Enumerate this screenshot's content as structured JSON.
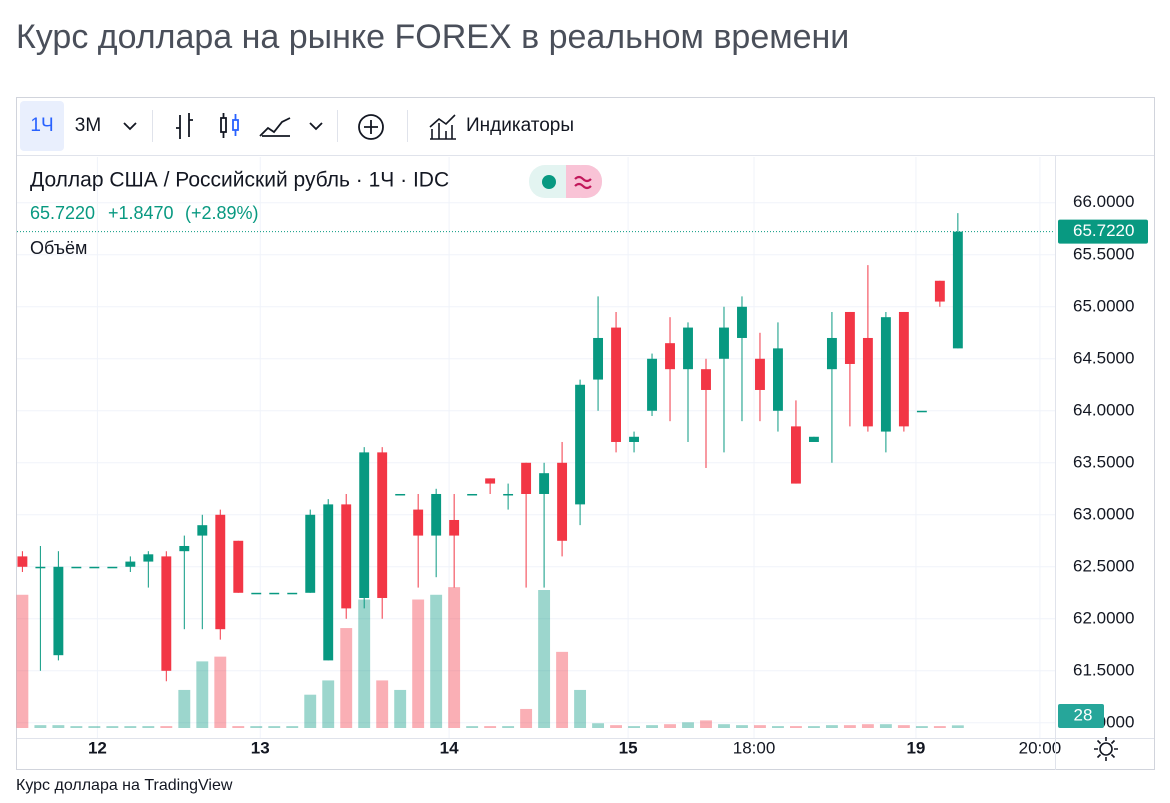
{
  "chart_data": {
    "type": "candlestick",
    "title": "Курс доллара на рынке FOREX в реальном времени",
    "toolbar": {
      "interval": "1Ч",
      "range": "3М",
      "indicators": "Индикаторы"
    },
    "legend_title": "Доллар США / Российский рубль · 1Ч · IDC",
    "change": "+1.8470",
    "change_pct": "(+2.89%)",
    "volume_label": "Объём",
    "source": "Курс доллара на TradingView",
    "up_color": "#089981",
    "down_color": "#f23645",
    "last_price": {
      "value": 65.722,
      "label": "65.7220"
    },
    "open": [
      62.6,
      62.5,
      61.65,
      62.5,
      62.5,
      62.5,
      62.5,
      62.55,
      62.6,
      62.65,
      62.8,
      63.0,
      62.75,
      62.25,
      62.25,
      62.25,
      62.25,
      61.6,
      63.1,
      62.2,
      63.6,
      63.2,
      63.05,
      62.8,
      62.95,
      63.2,
      63.35,
      63.2,
      63.5,
      63.2,
      63.5,
      63.1,
      64.3,
      64.8,
      63.7,
      64.0,
      64.65,
      64.4,
      64.4,
      64.5,
      64.7,
      64.5,
      64.0,
      63.85,
      63.7,
      64.4,
      64.95,
      64.7,
      63.8,
      64.95,
      64.0,
      65.25,
      64.6
    ],
    "high": [
      62.65,
      62.7,
      62.65,
      62.5,
      62.5,
      62.5,
      62.6,
      62.65,
      62.65,
      62.8,
      63.0,
      63.05,
      62.75,
      62.25,
      62.25,
      62.25,
      63.05,
      63.15,
      63.2,
      63.65,
      63.65,
      63.2,
      63.2,
      63.25,
      63.2,
      63.2,
      63.35,
      63.3,
      63.5,
      63.5,
      63.7,
      64.3,
      65.1,
      64.95,
      63.8,
      64.55,
      64.9,
      64.85,
      64.5,
      65.0,
      65.1,
      64.75,
      64.85,
      64.1,
      63.75,
      64.95,
      64.95,
      65.4,
      64.95,
      64.95,
      64.0,
      65.25,
      65.9
    ],
    "low": [
      62.45,
      61.5,
      61.6,
      62.5,
      62.5,
      62.5,
      62.45,
      62.3,
      61.4,
      61.9,
      61.9,
      61.8,
      62.25,
      62.25,
      62.25,
      62.25,
      62.25,
      61.6,
      62.0,
      62.1,
      62.0,
      63.2,
      62.3,
      62.4,
      62.3,
      63.2,
      63.2,
      63.05,
      62.3,
      62.3,
      62.6,
      62.9,
      64.0,
      63.6,
      63.6,
      63.95,
      63.9,
      63.7,
      63.45,
      63.6,
      63.9,
      63.9,
      63.8,
      63.3,
      63.7,
      63.5,
      63.85,
      63.8,
      63.6,
      63.8,
      64.0,
      65.0,
      64.6
    ],
    "close": [
      62.5,
      62.5,
      62.5,
      62.5,
      62.5,
      62.5,
      62.55,
      62.62,
      61.5,
      62.7,
      62.9,
      61.9,
      62.25,
      62.25,
      62.25,
      62.25,
      63.0,
      63.1,
      62.1,
      63.6,
      62.2,
      63.2,
      62.8,
      63.2,
      62.8,
      63.2,
      63.3,
      63.2,
      63.2,
      63.4,
      62.75,
      64.25,
      64.7,
      63.7,
      63.75,
      64.5,
      64.4,
      64.8,
      64.2,
      64.8,
      65.0,
      64.2,
      64.6,
      63.3,
      63.75,
      64.7,
      64.45,
      63.85,
      64.9,
      63.85,
      64.0,
      65.05,
      65.722
    ],
    "volume": [
      1400,
      30,
      30,
      20,
      20,
      20,
      20,
      20,
      20,
      400,
      700,
      750,
      20,
      20,
      20,
      20,
      350,
      500,
      1050,
      1350,
      500,
      400,
      1350,
      1400,
      1480,
      20,
      20,
      20,
      200,
      1450,
      800,
      400,
      50,
      30,
      20,
      30,
      40,
      60,
      80,
      40,
      30,
      30,
      20,
      20,
      20,
      30,
      30,
      40,
      40,
      30,
      20,
      20,
      28
    ],
    "xlim": [
      -0.3,
      57.4
    ],
    "xticks": [
      {
        "value": 4.17,
        "label": "12"
      },
      {
        "value": 13.22,
        "label": "13"
      },
      {
        "value": 23.72,
        "label": "14"
      },
      {
        "value": 33.67,
        "label": "15"
      },
      {
        "value": 40.67,
        "label": "18:00"
      },
      {
        "value": 49.67,
        "label": "19"
      },
      {
        "value": 56.56,
        "label": "20:00"
      }
    ],
    "ylim": [
      60.95,
      66.44
    ],
    "yticks": [
      {
        "value": 61,
        "label": "61.0000"
      },
      {
        "value": 61.5,
        "label": "61.5000"
      },
      {
        "value": 62,
        "label": "62.0000"
      },
      {
        "value": 62.5,
        "label": "62.5000"
      },
      {
        "value": 63,
        "label": "63.0000"
      },
      {
        "value": 63.5,
        "label": "63.5000"
      },
      {
        "value": 64,
        "label": "64.0000"
      },
      {
        "value": 64.5,
        "label": "64.5000"
      },
      {
        "value": 65,
        "label": "65.0000"
      },
      {
        "value": 65.5,
        "label": "65.5000"
      },
      {
        "value": 66,
        "label": "66.0000"
      }
    ],
    "y2lim": [
      0,
      6000
    ],
    "grid": true
  }
}
